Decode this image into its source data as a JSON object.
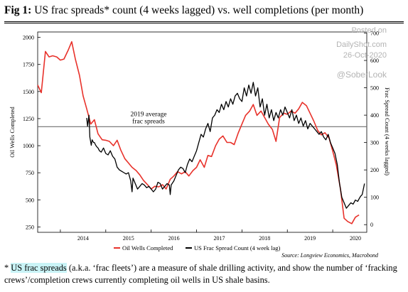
{
  "header": {
    "fig_label": "Fig 1:",
    "title": "US frac spreads* count (4 weeks lagged) vs. well completions (per month)"
  },
  "watermark": {
    "line1": "Posted on",
    "line2": "DailyShot.com",
    "date": "26-Oct-2020",
    "handle": "@SoberLook"
  },
  "source": "Source: Longview Economics, Macrobond",
  "footnote": {
    "prefix": "* ",
    "highlight": "US frac spreads",
    "body": " (a.k.a. ‘frac fleets’) are a measure of shale drilling activity, and show the number of ‘fracking crews’/completion crews currently completing oil wells in US shale basins."
  },
  "chart_data": {
    "type": "line",
    "title": "US frac spreads* count (4 weeks lagged) vs. well completions (per month)",
    "xlabel": "",
    "ylabel": "Oil Wells Completed",
    "y2label": "Frac Spread Count (4 weeks lagged)",
    "xlim": [
      2013.5,
      2020.75
    ],
    "ylim": [
      200,
      2050
    ],
    "y2lim": [
      -28,
      704
    ],
    "x_ticks": [
      2014,
      2015,
      2016,
      2017,
      2018,
      2019,
      2020
    ],
    "y_ticks": [
      250,
      500,
      750,
      1000,
      1250,
      1500,
      1750,
      2000
    ],
    "y2_ticks": [
      0,
      100,
      200,
      300,
      400,
      500,
      600,
      700
    ],
    "annotation": {
      "text_line1": "2019 average",
      "text_line2": "frac spreads",
      "axis": "right",
      "value": 358
    },
    "legend_placement": "bottom",
    "grid": false,
    "series": [
      {
        "name": "Oil Wells Completed",
        "axis": "left",
        "color": "#e8322b",
        "x": [
          2013.5,
          2013.58,
          2013.67,
          2013.75,
          2013.83,
          2013.92,
          2014.0,
          2014.08,
          2014.17,
          2014.25,
          2014.33,
          2014.42,
          2014.5,
          2014.58,
          2014.67,
          2014.75,
          2014.83,
          2014.92,
          2015.0,
          2015.08,
          2015.17,
          2015.25,
          2015.33,
          2015.42,
          2015.5,
          2015.58,
          2015.67,
          2015.75,
          2015.83,
          2015.92,
          2016.0,
          2016.08,
          2016.17,
          2016.25,
          2016.33,
          2016.42,
          2016.5,
          2016.58,
          2016.67,
          2016.75,
          2016.83,
          2016.92,
          2017.0,
          2017.08,
          2017.17,
          2017.25,
          2017.33,
          2017.42,
          2017.5,
          2017.58,
          2017.67,
          2017.75,
          2017.83,
          2017.92,
          2018.0,
          2018.08,
          2018.17,
          2018.25,
          2018.33,
          2018.42,
          2018.5,
          2018.58,
          2018.67,
          2018.75,
          2018.83,
          2018.92,
          2019.0,
          2019.08,
          2019.17,
          2019.25,
          2019.33,
          2019.42,
          2019.5,
          2019.58,
          2019.67,
          2019.75,
          2019.83,
          2019.92,
          2020.0,
          2020.08,
          2020.17,
          2020.25,
          2020.33,
          2020.42,
          2020.5,
          2020.58
        ],
        "values": [
          1560,
          1490,
          1870,
          1820,
          1830,
          1820,
          1790,
          1800,
          1880,
          1960,
          1800,
          1650,
          1460,
          1340,
          1200,
          1240,
          1110,
          1055,
          1050,
          1040,
          1000,
          1050,
          960,
          880,
          840,
          800,
          770,
          730,
          680,
          640,
          600,
          625,
          620,
          640,
          600,
          690,
          720,
          760,
          740,
          760,
          720,
          770,
          800,
          870,
          800,
          910,
          900,
          1000,
          1060,
          1090,
          1030,
          1030,
          1010,
          1120,
          1200,
          1280,
          1320,
          1380,
          1280,
          1320,
          1260,
          1200,
          1150,
          1040,
          1260,
          1300,
          1290,
          1320,
          1300,
          1340,
          1400,
          1370,
          1300,
          1230,
          1140,
          1100,
          1120,
          1070,
          950,
          820,
          600,
          330,
          300,
          280,
          340,
          360
        ]
      },
      {
        "name": "US Frac Spread Count (4 week lag)",
        "axis": "right",
        "color": "#000000",
        "x": [
          2014.58,
          2014.6,
          2014.63,
          2014.65,
          2014.68,
          2014.7,
          2014.73,
          2014.75,
          2014.78,
          2014.8,
          2014.83,
          2014.86,
          2014.9,
          2014.95,
          2015.0,
          2015.05,
          2015.1,
          2015.15,
          2015.2,
          2015.25,
          2015.3,
          2015.35,
          2015.4,
          2015.45,
          2015.5,
          2015.55,
          2015.58,
          2015.6,
          2015.65,
          2015.7,
          2015.75,
          2015.8,
          2015.85,
          2015.9,
          2015.95,
          2016.0,
          2016.05,
          2016.1,
          2016.15,
          2016.2,
          2016.25,
          2016.3,
          2016.35,
          2016.4,
          2016.42,
          2016.44,
          2016.5,
          2016.55,
          2016.6,
          2016.65,
          2016.7,
          2016.75,
          2016.8,
          2016.85,
          2016.9,
          2016.95,
          2017.0,
          2017.05,
          2017.1,
          2017.15,
          2017.2,
          2017.25,
          2017.3,
          2017.35,
          2017.4,
          2017.45,
          2017.5,
          2017.55,
          2017.6,
          2017.65,
          2017.7,
          2017.75,
          2017.8,
          2017.85,
          2017.9,
          2017.95,
          2018.0,
          2018.05,
          2018.1,
          2018.15,
          2018.2,
          2018.25,
          2018.3,
          2018.35,
          2018.4,
          2018.45,
          2018.5,
          2018.55,
          2018.6,
          2018.65,
          2018.7,
          2018.75,
          2018.8,
          2018.85,
          2018.9,
          2018.95,
          2019.0,
          2019.05,
          2019.1,
          2019.15,
          2019.2,
          2019.25,
          2019.3,
          2019.35,
          2019.4,
          2019.45,
          2019.5,
          2019.55,
          2019.6,
          2019.65,
          2019.7,
          2019.75,
          2019.8,
          2019.85,
          2019.9,
          2019.95,
          2020.0,
          2020.05,
          2020.1,
          2020.15,
          2020.2,
          2020.25,
          2020.3,
          2020.35,
          2020.4,
          2020.45,
          2020.5,
          2020.55,
          2020.6,
          2020.62,
          2020.65,
          2020.7
        ],
        "values": [
          390,
          360,
          400,
          320,
          290,
          310,
          300,
          300,
          290,
          285,
          280,
          270,
          265,
          280,
          260,
          255,
          270,
          250,
          240,
          210,
          200,
          195,
          190,
          185,
          190,
          160,
          120,
          170,
          150,
          130,
          140,
          150,
          145,
          135,
          140,
          130,
          120,
          130,
          155,
          150,
          130,
          140,
          150,
          145,
          110,
          145,
          160,
          180,
          200,
          210,
          205,
          190,
          220,
          240,
          230,
          250,
          270,
          300,
          330,
          320,
          350,
          370,
          340,
          390,
          400,
          420,
          410,
          440,
          420,
          450,
          430,
          460,
          440,
          470,
          480,
          460,
          450,
          500,
          470,
          510,
          480,
          520,
          470,
          500,
          430,
          460,
          400,
          440,
          390,
          420,
          380,
          410,
          390,
          420,
          400,
          430,
          410,
          390,
          420,
          380,
          400,
          370,
          390,
          360,
          380,
          350,
          370,
          360,
          350,
          340,
          330,
          340,
          320,
          310,
          330,
          300,
          280,
          260,
          220,
          150,
          100,
          80,
          60,
          70,
          80,
          75,
          90,
          85,
          100,
          105,
          110,
          150
        ]
      }
    ]
  }
}
